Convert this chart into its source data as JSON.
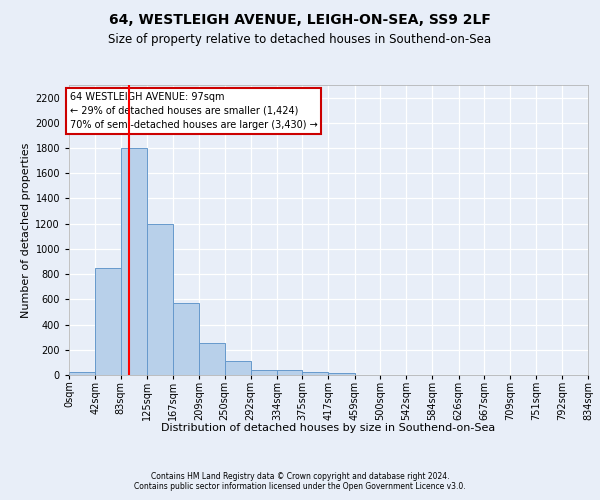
{
  "title1": "64, WESTLEIGH AVENUE, LEIGH-ON-SEA, SS9 2LF",
  "title2": "Size of property relative to detached houses in Southend-on-Sea",
  "xlabel": "Distribution of detached houses by size in Southend-on-Sea",
  "ylabel": "Number of detached properties",
  "bin_edges": [
    0,
    42,
    83,
    125,
    167,
    209,
    250,
    292,
    334,
    375,
    417,
    459,
    500,
    542,
    584,
    626,
    667,
    709,
    751,
    792,
    834
  ],
  "bar_heights": [
    25,
    850,
    1800,
    1200,
    575,
    255,
    115,
    40,
    40,
    25,
    15,
    0,
    0,
    0,
    0,
    0,
    0,
    0,
    0,
    0
  ],
  "bar_color": "#b8d0ea",
  "bar_edge_color": "#6699cc",
  "red_line_x": 97,
  "ylim": [
    0,
    2300
  ],
  "yticks": [
    0,
    200,
    400,
    600,
    800,
    1000,
    1200,
    1400,
    1600,
    1800,
    2000,
    2200
  ],
  "annotation_line1": "64 WESTLEIGH AVENUE: 97sqm",
  "annotation_line2": "← 29% of detached houses are smaller (1,424)",
  "annotation_line3": "70% of semi-detached houses are larger (3,430) →",
  "annotation_box_color": "#ffffff",
  "annotation_box_edge": "#cc0000",
  "footnote1": "Contains HM Land Registry data © Crown copyright and database right 2024.",
  "footnote2": "Contains public sector information licensed under the Open Government Licence v3.0.",
  "background_color": "#e8eef8",
  "grid_color": "#ffffff",
  "title1_fontsize": 10,
  "title2_fontsize": 8.5,
  "ylabel_fontsize": 8,
  "xlabel_fontsize": 8,
  "tick_fontsize": 7,
  "footnote_fontsize": 5.5
}
